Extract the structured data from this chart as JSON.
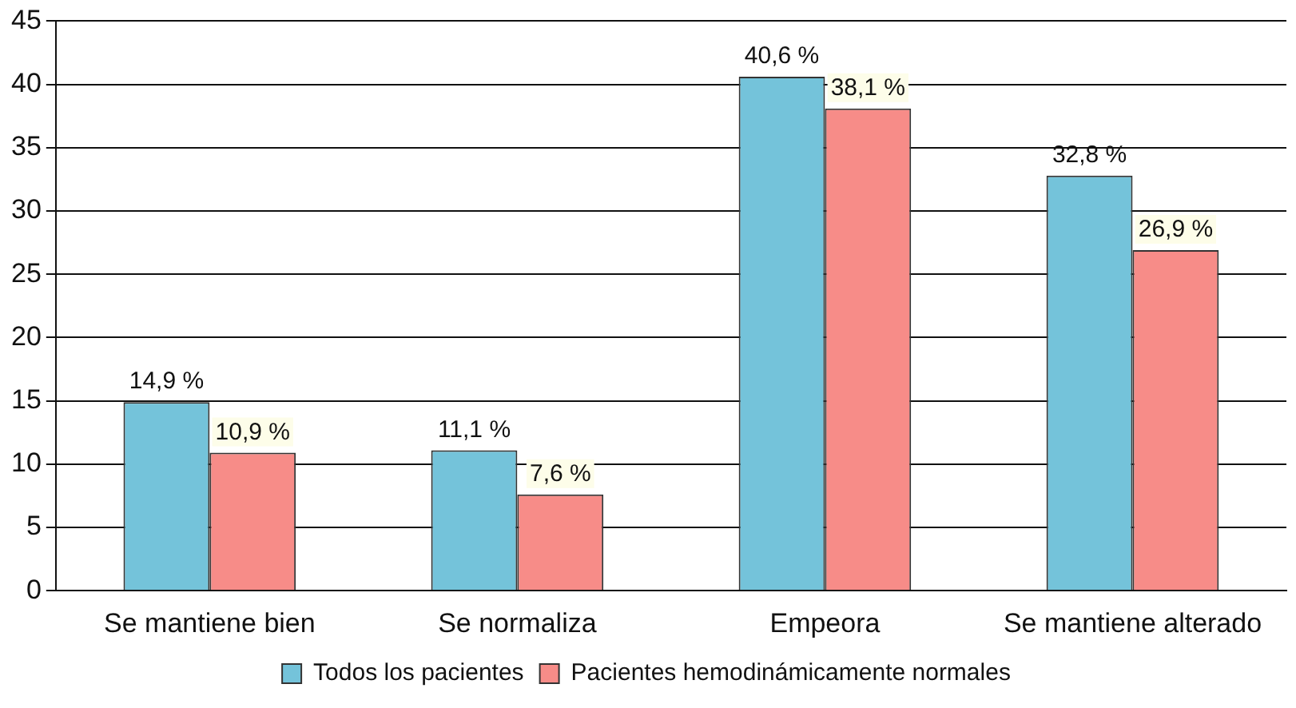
{
  "chart_data": {
    "type": "bar",
    "categories": [
      "Se mantiene bien",
      "Se normaliza",
      "Empeora",
      "Se mantiene alterado"
    ],
    "series": [
      {
        "name": "Todos los pacientes",
        "color": "#74c3da",
        "values": [
          14.9,
          11.1,
          40.6,
          32.8
        ],
        "value_labels": [
          "14,9 %",
          "11,1 %",
          "40,6 %",
          "32,8 %"
        ]
      },
      {
        "name": "Pacientes hemodinámicamente normales",
        "color": "#f78c88",
        "values": [
          10.9,
          7.6,
          38.1,
          26.9
        ],
        "value_labels": [
          "10,9 %",
          "7,6 %",
          "38,1 %",
          "26,9 %"
        ]
      }
    ],
    "ylim": [
      0,
      45
    ],
    "yticks": [
      0,
      5,
      10,
      15,
      20,
      25,
      30,
      35,
      40,
      45
    ],
    "grid": "y",
    "legend": "bottom"
  }
}
